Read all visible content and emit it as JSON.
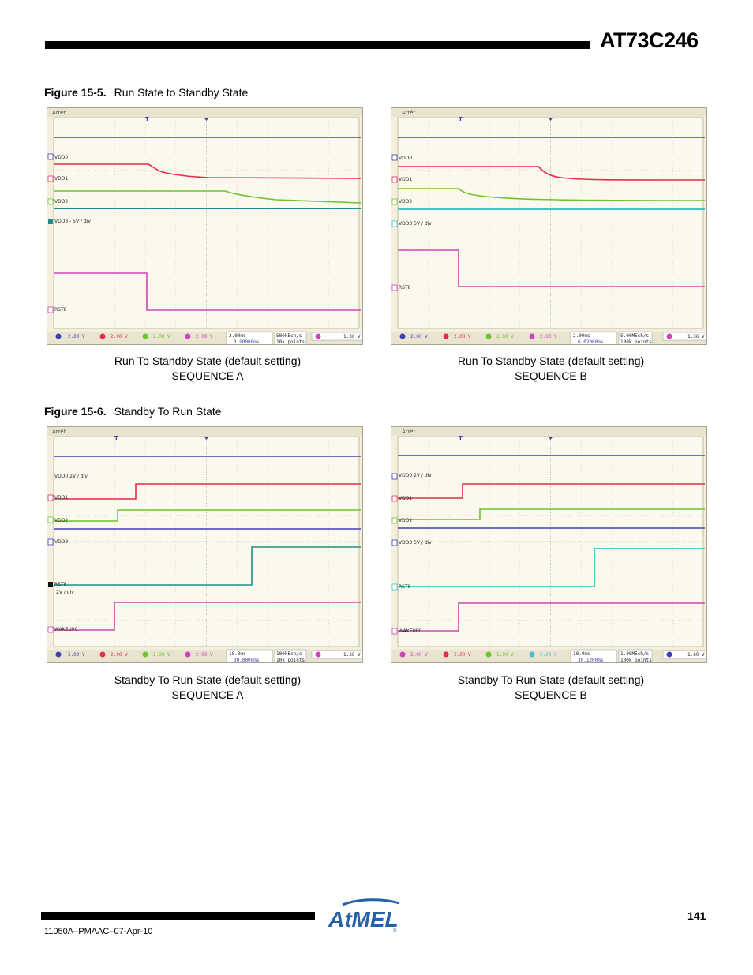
{
  "header": {
    "title": "AT73C246"
  },
  "figures": [
    {
      "number": "Figure 15-5.",
      "title": "Run State to Standby State",
      "scopes": [
        {
          "status": "Arrêt",
          "trigger_mark": "T",
          "trace_labels": [
            "VDD0",
            "VDD1",
            "VDD2",
            "VDD3 - 5V / div",
            "RST8"
          ],
          "settings": [
            "2.00 V",
            "2.00 V",
            "2.00 V",
            "2.00 V"
          ],
          "timebase": "2.00ms",
          "delay": "3.90000ms",
          "sample_rate": "500kEch/s",
          "points": "10k points",
          "trigger_level": "1.36 V",
          "caption_line1": "Run To Standby State (default setting)",
          "caption_line2": "SEQUENCE A"
        },
        {
          "status": "Arrêt",
          "trigger_mark": "T",
          "trace_labels": [
            "VDD0",
            "VDD1",
            "VDD2",
            "VDD3   5V / div",
            "RST8"
          ],
          "settings": [
            "2.00 V",
            "2.00 V",
            "2.00 V",
            "2.00 V"
          ],
          "timebase": "2.00ms",
          "delay": "6.02000ms",
          "sample_rate": "5.00MEch/s",
          "points": "100k points",
          "trigger_level": "1.36 V",
          "caption_line1": "Run To Standby State (default setting)",
          "caption_line2": "SEQUENCE B"
        }
      ]
    },
    {
      "number": "Figure 15-6.",
      "title": "Standby To Run State",
      "scopes": [
        {
          "status": "Arrêt",
          "trigger_mark": "T",
          "trace_labels": [
            "VDD0 2V / div",
            "VDD1",
            "VDD2",
            "VDD3",
            "RST8",
            "2V / div",
            "WAKEUP0"
          ],
          "settings": [
            "5.00 V",
            "2.00 V",
            "2.00 V",
            "2.00 V"
          ],
          "timebase": "10.0ms",
          "delay": "30.0000ms",
          "sample_rate": "100kEch/s",
          "points": "10k points",
          "trigger_level": "1.36 V",
          "caption_line1": "Standby To Run State (default setting)",
          "caption_line2": "SEQUENCE A"
        },
        {
          "status": "Arrêt",
          "trigger_mark": "T",
          "trace_labels": [
            "VDD0   2V / div",
            "VDD1",
            "VDD2",
            "VDD3   5V / div",
            "RST8",
            "WAKEUP0"
          ],
          "settings": [
            "2.00 V",
            "2.00 V",
            "1.00 V",
            "2.00 V"
          ],
          "timebase": "10.0ms",
          "delay": "30.1200ms",
          "sample_rate": "1.00MEch/s",
          "points": "100k points",
          "trigger_level": "1.60 V",
          "caption_line1": "Standby To Run State (default setting)",
          "caption_line2": "SEQUENCE B"
        }
      ]
    }
  ],
  "footer": {
    "doc_id": "11050A–PMAAC–07-Apr-10",
    "page_number": "141",
    "logo_text": "AtMEL"
  },
  "colors": {
    "blue": "#3f3fb0",
    "red": "#e8294a",
    "green": "#6cc42a",
    "teal": "#1f8d8a",
    "cyan": "#46c3c6",
    "magenta": "#cc45b8",
    "scope_bg": "#f3efdc",
    "brand": "#2562a8"
  }
}
